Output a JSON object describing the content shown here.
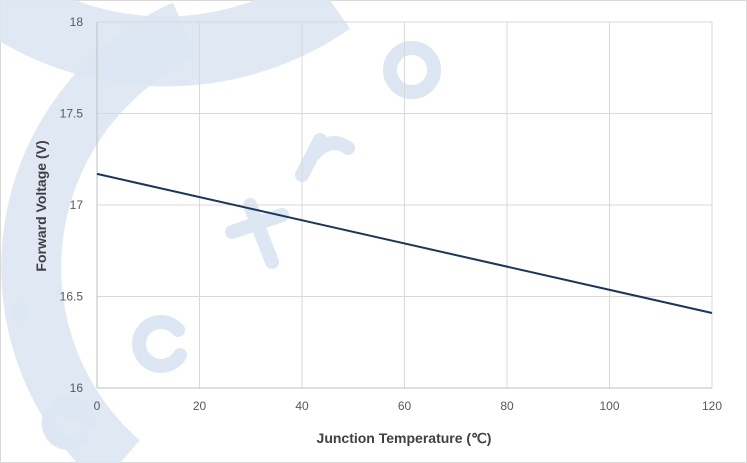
{
  "chart_data": {
    "type": "line",
    "title": "",
    "xlabel": "Junction Temperature (℃)",
    "ylabel": "Forward Voltage (V)",
    "xlim": [
      0,
      120
    ],
    "ylim": [
      16,
      18
    ],
    "x_ticks": [
      "0",
      "20",
      "40",
      "60",
      "80",
      "100",
      "120"
    ],
    "y_ticks": [
      "16",
      "16.5",
      "17",
      "17.5",
      "18"
    ],
    "grid": true,
    "legend": "none",
    "series": [
      {
        "color": "#17375e",
        "points": [
          {
            "x": 0,
            "y": 17.17
          },
          {
            "x": 120,
            "y": 16.41
          }
        ]
      }
    ]
  },
  "colors": {
    "line": "#17375e",
    "grid": "#d9d9d9",
    "axis": "#bfbfbf",
    "tick_text": "#595959",
    "watermark": "#dde6f3"
  }
}
